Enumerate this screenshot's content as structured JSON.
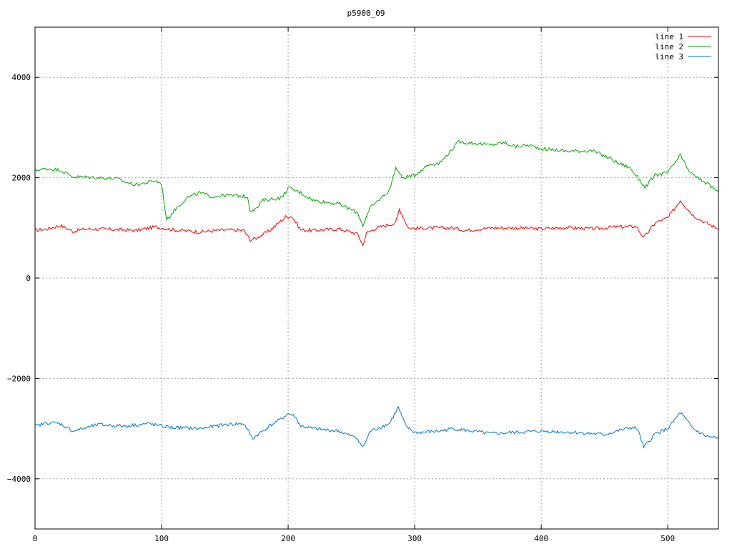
{
  "chart_data": {
    "type": "line",
    "title": "p5900_09",
    "xlabel": "",
    "ylabel": "",
    "xlim": [
      0,
      540
    ],
    "ylim": [
      -5000,
      5000
    ],
    "xticks": [
      0,
      100,
      200,
      300,
      400,
      500
    ],
    "yticks": [
      -4000,
      -2000,
      0,
      2000,
      4000
    ],
    "ytick_labels": [
      "−4000",
      "−2000",
      "0",
      "2000",
      "4000"
    ],
    "grid": true,
    "legend_position": "top-right",
    "series": [
      {
        "name": "line 1",
        "color": "#ff0000",
        "x": [
          0,
          10,
          20,
          30,
          40,
          60,
          80,
          95,
          110,
          130,
          150,
          165,
          170,
          175,
          185,
          198,
          203,
          210,
          220,
          240,
          255,
          259,
          262,
          270,
          285,
          288,
          295,
          300,
          320,
          330,
          340,
          360,
          380,
          400,
          420,
          440,
          460,
          475,
          481,
          490,
          500,
          510,
          520,
          530,
          540
        ],
        "y": [
          950,
          980,
          1050,
          930,
          980,
          970,
          950,
          1020,
          960,
          920,
          960,
          950,
          760,
          800,
          940,
          1220,
          1230,
          960,
          950,
          980,
          880,
          650,
          900,
          1000,
          1100,
          1380,
          1000,
          990,
          1000,
          1000,
          950,
          1000,
          1000,
          980,
          1010,
          980,
          1020,
          1030,
          800,
          1100,
          1200,
          1550,
          1250,
          1100,
          980
        ]
      },
      {
        "name": "line 2",
        "color": "#00aa00",
        "x": [
          0,
          10,
          20,
          30,
          50,
          65,
          70,
          80,
          88,
          95,
          100,
          104,
          110,
          120,
          130,
          140,
          150,
          160,
          168,
          170,
          175,
          180,
          195,
          200,
          210,
          220,
          240,
          255,
          259,
          265,
          280,
          285,
          290,
          300,
          310,
          320,
          335,
          340,
          350,
          360,
          370,
          380,
          390,
          400,
          420,
          440,
          455,
          460,
          470,
          478,
          482,
          490,
          500,
          510,
          515,
          520,
          530,
          540
        ],
        "y": [
          2150,
          2180,
          2150,
          2020,
          2000,
          1980,
          1920,
          1860,
          1900,
          1940,
          1880,
          1150,
          1350,
          1600,
          1700,
          1620,
          1650,
          1640,
          1620,
          1350,
          1380,
          1550,
          1600,
          1800,
          1700,
          1550,
          1480,
          1300,
          1050,
          1400,
          1750,
          2200,
          2000,
          2050,
          2250,
          2300,
          2720,
          2700,
          2680,
          2650,
          2700,
          2620,
          2650,
          2580,
          2530,
          2540,
          2380,
          2300,
          2200,
          1950,
          1800,
          2050,
          2100,
          2450,
          2200,
          2050,
          1900,
          1720
        ]
      },
      {
        "name": "line 3",
        "color": "#0077cc",
        "x": [
          0,
          10,
          20,
          30,
          50,
          70,
          90,
          100,
          110,
          130,
          150,
          165,
          172,
          178,
          185,
          195,
          200,
          205,
          210,
          220,
          240,
          255,
          259,
          265,
          280,
          287,
          293,
          300,
          320,
          330,
          360,
          400,
          430,
          450,
          470,
          476,
          481,
          490,
          500,
          510,
          520,
          530,
          540
        ],
        "y": [
          -2950,
          -2880,
          -2900,
          -3050,
          -2920,
          -2950,
          -2900,
          -2950,
          -2980,
          -3000,
          -2920,
          -2900,
          -3200,
          -3080,
          -2950,
          -2800,
          -2700,
          -2750,
          -2950,
          -3000,
          -3050,
          -3200,
          -3380,
          -3050,
          -2900,
          -2580,
          -2950,
          -3080,
          -3050,
          -3000,
          -3100,
          -3050,
          -3080,
          -3120,
          -2980,
          -3000,
          -3380,
          -3100,
          -3000,
          -2680,
          -3000,
          -3150,
          -3200
        ]
      }
    ]
  }
}
